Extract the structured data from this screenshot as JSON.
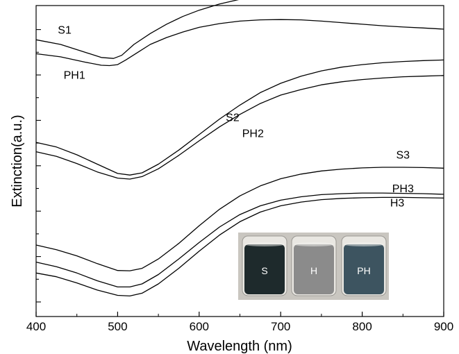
{
  "chart_data": {
    "type": "line",
    "title": "",
    "xlabel": "Wavelength (nm)",
    "ylabel": "Extinction(a.u.)",
    "xlim": [
      400,
      900
    ],
    "ylim": [
      0,
      10
    ],
    "x_ticks": [
      "400",
      "500",
      "600",
      "700",
      "800",
      "900"
    ],
    "y_ticks_labeled": false,
    "grid": false,
    "line_color": "#000000",
    "series": [
      {
        "name": "S1",
        "x": [
          400,
          430,
          460,
          480,
          495,
          505,
          520,
          540,
          560,
          580,
          600,
          625,
          650,
          675,
          700,
          725,
          750,
          775,
          800,
          825,
          850,
          875,
          900
        ],
        "y": [
          8.9,
          8.75,
          8.5,
          8.33,
          8.3,
          8.4,
          8.75,
          9.1,
          9.4,
          9.65,
          9.85,
          10.05,
          10.2,
          10.3,
          10.36,
          10.39,
          10.41,
          10.4,
          10.38,
          10.34,
          10.3,
          10.26,
          10.2
        ]
      },
      {
        "name": "PH1",
        "x": [
          400,
          430,
          460,
          480,
          490,
          500,
          510,
          525,
          540,
          560,
          580,
          600,
          625,
          650,
          675,
          700,
          725,
          750,
          775,
          800,
          825,
          850,
          875,
          900
        ],
        "y": [
          8.45,
          8.35,
          8.18,
          8.08,
          8.07,
          8.1,
          8.25,
          8.5,
          8.75,
          8.97,
          9.15,
          9.3,
          9.42,
          9.5,
          9.54,
          9.55,
          9.54,
          9.5,
          9.45,
          9.4,
          9.35,
          9.31,
          9.28,
          9.24
        ]
      },
      {
        "name": "S2",
        "x": [
          400,
          425,
          450,
          475,
          500,
          515,
          530,
          550,
          575,
          600,
          625,
          650,
          675,
          700,
          725,
          750,
          775,
          800,
          825,
          850,
          875,
          900
        ],
        "y": [
          5.6,
          5.45,
          5.2,
          4.9,
          4.6,
          4.55,
          4.62,
          4.9,
          5.35,
          5.85,
          6.35,
          6.8,
          7.2,
          7.5,
          7.73,
          7.9,
          8.02,
          8.1,
          8.16,
          8.2,
          8.23,
          8.25
        ]
      },
      {
        "name": "PH2",
        "x": [
          400,
          425,
          450,
          475,
          500,
          515,
          530,
          550,
          575,
          600,
          625,
          650,
          675,
          700,
          725,
          750,
          775,
          800,
          825,
          850,
          875,
          900
        ],
        "y": [
          5.3,
          5.15,
          4.92,
          4.65,
          4.45,
          4.42,
          4.5,
          4.75,
          5.18,
          5.65,
          6.1,
          6.5,
          6.85,
          7.12,
          7.3,
          7.45,
          7.55,
          7.62,
          7.67,
          7.71,
          7.73,
          7.75
        ]
      },
      {
        "name": "S3",
        "x": [
          400,
          425,
          450,
          475,
          500,
          515,
          530,
          550,
          575,
          600,
          625,
          650,
          675,
          700,
          725,
          750,
          775,
          800,
          825,
          850,
          875,
          900
        ],
        "y": [
          2.3,
          2.15,
          1.95,
          1.7,
          1.48,
          1.47,
          1.55,
          1.85,
          2.35,
          2.92,
          3.45,
          3.88,
          4.2,
          4.43,
          4.58,
          4.68,
          4.74,
          4.78,
          4.8,
          4.8,
          4.79,
          4.77
        ]
      },
      {
        "name": "PH3",
        "x": [
          400,
          425,
          450,
          475,
          500,
          515,
          530,
          550,
          575,
          600,
          625,
          650,
          675,
          700,
          725,
          750,
          775,
          800,
          825,
          850,
          875,
          900
        ],
        "y": [
          1.75,
          1.6,
          1.4,
          1.15,
          0.95,
          0.95,
          1.05,
          1.35,
          1.85,
          2.38,
          2.88,
          3.28,
          3.56,
          3.74,
          3.85,
          3.92,
          3.95,
          3.97,
          3.97,
          3.96,
          3.95,
          3.93
        ]
      },
      {
        "name": "H3",
        "x": [
          400,
          425,
          450,
          475,
          500,
          515,
          530,
          550,
          575,
          600,
          625,
          650,
          675,
          700,
          725,
          750,
          775,
          800,
          825,
          850,
          875,
          900
        ],
        "y": [
          1.4,
          1.28,
          1.08,
          0.85,
          0.68,
          0.66,
          0.75,
          1.05,
          1.55,
          2.1,
          2.62,
          3.05,
          3.36,
          3.56,
          3.68,
          3.76,
          3.8,
          3.82,
          3.83,
          3.83,
          3.82,
          3.81
        ]
      }
    ],
    "series_labels": [
      {
        "text": "S1",
        "x": 435,
        "y": 9.1
      },
      {
        "text": "PH1",
        "x": 447,
        "y": 7.65
      },
      {
        "text": "S2",
        "x": 641,
        "y": 6.28
      },
      {
        "text": "PH2",
        "x": 666,
        "y": 5.77
      },
      {
        "text": "S3",
        "x": 850,
        "y": 5.08
      },
      {
        "text": "PH3",
        "x": 850,
        "y": 3.99
      },
      {
        "text": "H3",
        "x": 843,
        "y": 3.54
      }
    ]
  },
  "inset": {
    "vials": [
      {
        "label": "S",
        "fill": "#1e2a2c"
      },
      {
        "label": "H",
        "fill": "#8b8b8b"
      },
      {
        "label": "PH",
        "fill": "#3d5460"
      }
    ],
    "background_color": "#c9c6c0"
  }
}
